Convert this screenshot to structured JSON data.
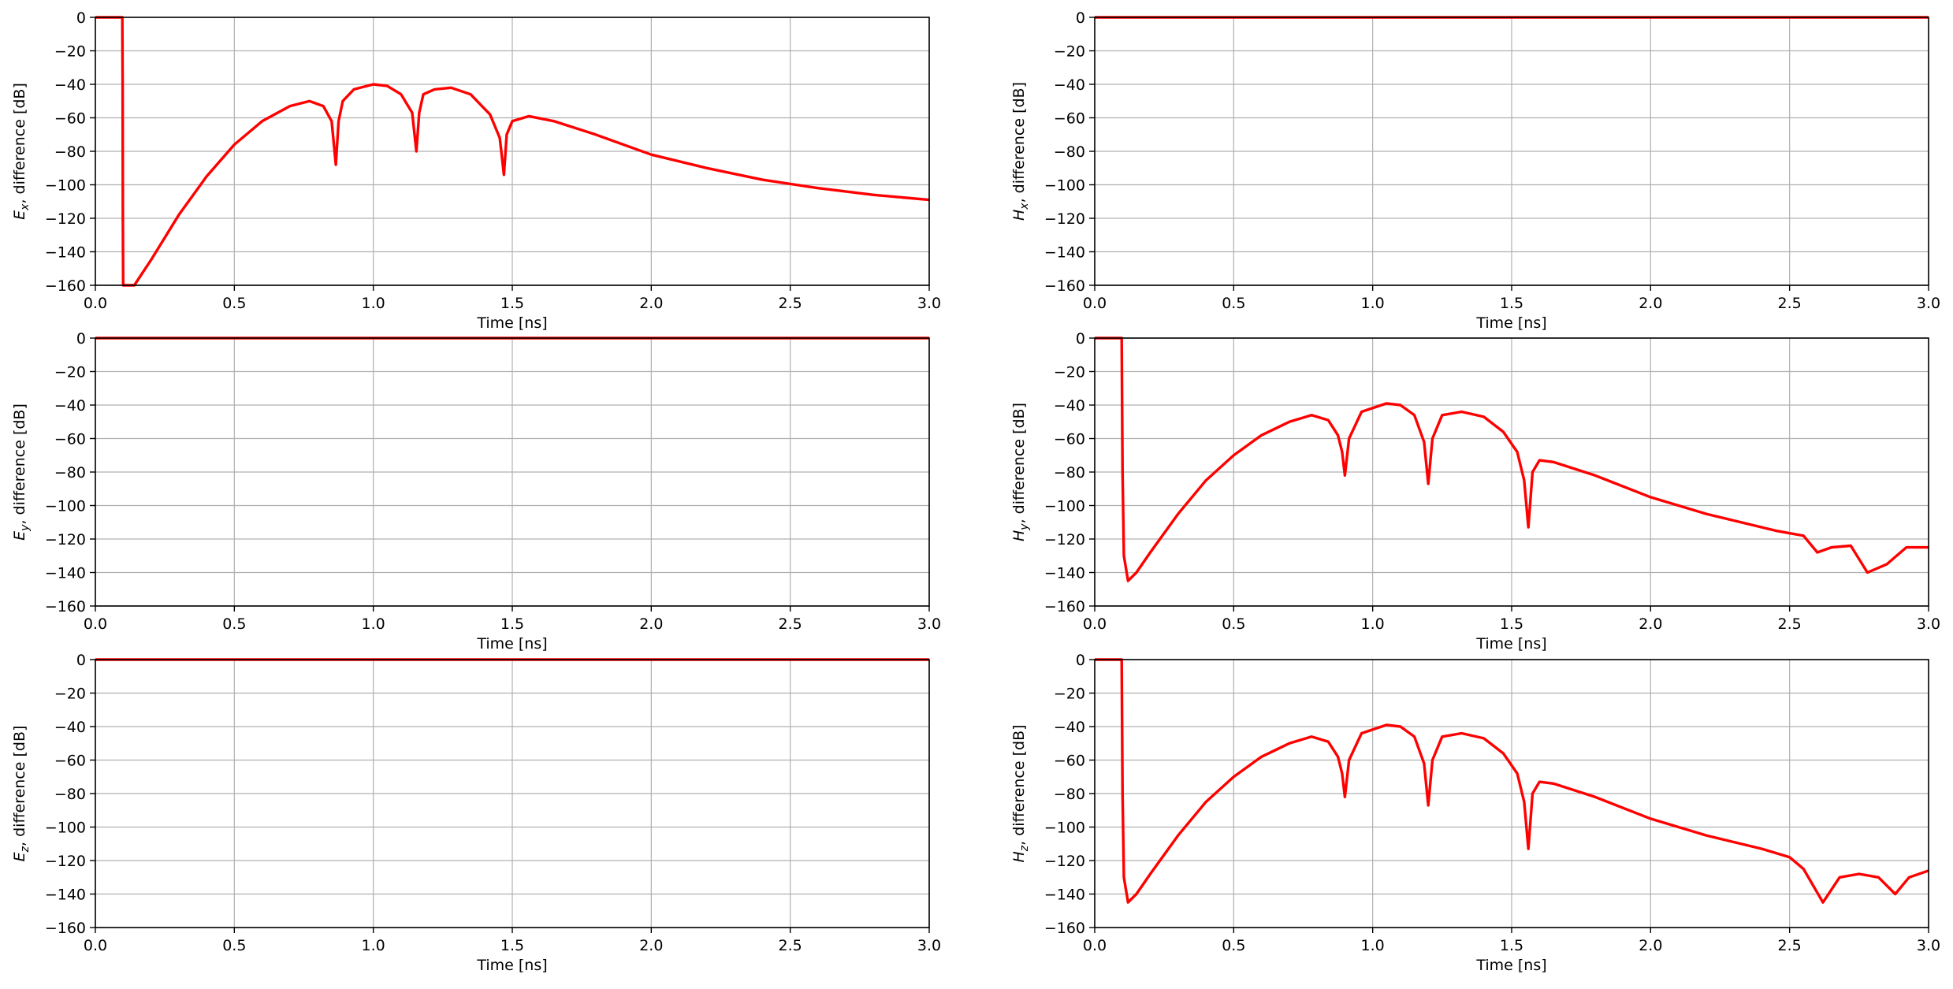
{
  "chart_data": [
    {
      "type": "line",
      "ylabel_symbol": "E",
      "ylabel_sub": "x",
      "ylabel_rest": ", difference [dB]",
      "xlabel": "Time [ns]",
      "xlim": [
        0,
        3
      ],
      "ylim": [
        -160,
        0
      ],
      "xticks": [
        "0.0",
        "0.5",
        "1.0",
        "1.5",
        "2.0",
        "2.5",
        "3.0"
      ],
      "yticks": [
        "0",
        "-20",
        "-40",
        "-60",
        "-80",
        "-100",
        "-120",
        "-140",
        "-160"
      ],
      "grid": true,
      "color": "#ff0000",
      "series": [
        {
          "x": [
            0.0,
            0.095,
            0.097,
            0.098,
            0.099,
            0.1,
            0.1,
            0.14,
            0.2,
            0.3,
            0.4,
            0.5,
            0.6,
            0.7,
            0.77,
            0.82,
            0.85,
            0.865,
            0.875,
            0.89,
            0.93,
            1.0,
            1.05,
            1.1,
            1.14,
            1.155,
            1.165,
            1.18,
            1.22,
            1.28,
            1.35,
            1.42,
            1.455,
            1.47,
            1.48,
            1.5,
            1.56,
            1.65,
            1.8,
            2.0,
            2.2,
            2.4,
            2.6,
            2.8,
            3.0
          ],
          "y": [
            0,
            0,
            0,
            -40,
            -120,
            -160,
            -160,
            -160,
            -145,
            -118,
            -95,
            -76,
            -62,
            -53,
            -50,
            -53,
            -62,
            -88,
            -62,
            -50,
            -43,
            -40,
            -41,
            -46,
            -57,
            -80,
            -57,
            -46,
            -43,
            -42,
            -46,
            -58,
            -72,
            -94,
            -70,
            -62,
            -59,
            -62,
            -70,
            -82,
            -90,
            -97,
            -102,
            -106,
            -109
          ]
        }
      ]
    },
    {
      "type": "line",
      "ylabel_symbol": "H",
      "ylabel_sub": "x",
      "ylabel_rest": ", difference [dB]",
      "xlabel": "Time [ns]",
      "xlim": [
        0,
        3
      ],
      "ylim": [
        -160,
        0
      ],
      "xticks": [
        "0.0",
        "0.5",
        "1.0",
        "1.5",
        "2.0",
        "2.5",
        "3.0"
      ],
      "yticks": [
        "0",
        "-20",
        "-40",
        "-60",
        "-80",
        "-100",
        "-120",
        "-140",
        "-160"
      ],
      "grid": true,
      "color": "#ff0000",
      "series": [
        {
          "x": [
            0.0,
            3.0
          ],
          "y": [
            0,
            0
          ]
        }
      ]
    },
    {
      "type": "line",
      "ylabel_symbol": "E",
      "ylabel_sub": "y",
      "ylabel_rest": ", difference [dB]",
      "xlabel": "Time [ns]",
      "xlim": [
        0,
        3
      ],
      "ylim": [
        -160,
        0
      ],
      "xticks": [
        "0.0",
        "0.5",
        "1.0",
        "1.5",
        "2.0",
        "2.5",
        "3.0"
      ],
      "yticks": [
        "0",
        "-20",
        "-40",
        "-60",
        "-80",
        "-100",
        "-120",
        "-140",
        "-160"
      ],
      "grid": true,
      "color": "#ff0000",
      "series": [
        {
          "x": [
            0.0,
            3.0
          ],
          "y": [
            0,
            0
          ]
        }
      ]
    },
    {
      "type": "line",
      "ylabel_symbol": "H",
      "ylabel_sub": "y",
      "ylabel_rest": ", difference [dB]",
      "xlabel": "Time [ns]",
      "xlim": [
        0,
        3
      ],
      "ylim": [
        -160,
        0
      ],
      "xticks": [
        "0.0",
        "0.5",
        "1.0",
        "1.5",
        "2.0",
        "2.5",
        "3.0"
      ],
      "yticks": [
        "0",
        "-20",
        "-40",
        "-60",
        "-80",
        "-100",
        "-120",
        "-140",
        "-160"
      ],
      "grid": true,
      "color": "#ff0000",
      "series": [
        {
          "x": [
            0.0,
            0.095,
            0.097,
            0.1,
            0.105,
            0.12,
            0.15,
            0.2,
            0.3,
            0.4,
            0.5,
            0.6,
            0.7,
            0.78,
            0.84,
            0.875,
            0.89,
            0.9,
            0.915,
            0.96,
            1.05,
            1.1,
            1.15,
            1.185,
            1.2,
            1.215,
            1.25,
            1.32,
            1.4,
            1.47,
            1.52,
            1.545,
            1.56,
            1.575,
            1.6,
            1.65,
            1.8,
            2.0,
            2.2,
            2.4,
            2.45,
            2.55,
            2.6,
            2.65,
            2.72,
            2.78,
            2.85,
            2.92,
            3.0
          ],
          "y": [
            0,
            0,
            0,
            -80,
            -130,
            -145,
            -140,
            -128,
            -105,
            -85,
            -70,
            -58,
            -50,
            -46,
            -49,
            -58,
            -68,
            -82,
            -60,
            -44,
            -39,
            -40,
            -46,
            -62,
            -87,
            -60,
            -46,
            -44,
            -47,
            -56,
            -68,
            -85,
            -113,
            -80,
            -73,
            -74,
            -82,
            -95,
            -105,
            -113,
            -115,
            -118,
            -128,
            -125,
            -124,
            -140,
            -135,
            -125,
            -125
          ]
        }
      ]
    },
    {
      "type": "line",
      "ylabel_symbol": "E",
      "ylabel_sub": "z",
      "ylabel_rest": ", difference [dB]",
      "xlabel": "Time [ns]",
      "xlim": [
        0,
        3
      ],
      "ylim": [
        -160,
        0
      ],
      "xticks": [
        "0.0",
        "0.5",
        "1.0",
        "1.5",
        "2.0",
        "2.5",
        "3.0"
      ],
      "yticks": [
        "0",
        "-20",
        "-40",
        "-60",
        "-80",
        "-100",
        "-120",
        "-140",
        "-160"
      ],
      "grid": true,
      "color": "#ff0000",
      "series": [
        {
          "x": [
            0.0,
            3.0
          ],
          "y": [
            0,
            0
          ]
        }
      ]
    },
    {
      "type": "line",
      "ylabel_symbol": "H",
      "ylabel_sub": "z",
      "ylabel_rest": ", difference [dB]",
      "xlabel": "Time [ns]",
      "xlim": [
        0,
        3
      ],
      "ylim": [
        -160,
        0
      ],
      "xticks": [
        "0.0",
        "0.5",
        "1.0",
        "1.5",
        "2.0",
        "2.5",
        "3.0"
      ],
      "yticks": [
        "0",
        "-20",
        "-40",
        "-60",
        "-80",
        "-100",
        "-120",
        "-140",
        "-160"
      ],
      "grid": true,
      "color": "#ff0000",
      "series": [
        {
          "x": [
            0.0,
            0.095,
            0.097,
            0.1,
            0.105,
            0.12,
            0.15,
            0.2,
            0.3,
            0.4,
            0.5,
            0.6,
            0.7,
            0.78,
            0.84,
            0.875,
            0.89,
            0.9,
            0.915,
            0.96,
            1.05,
            1.1,
            1.15,
            1.185,
            1.2,
            1.215,
            1.25,
            1.32,
            1.4,
            1.47,
            1.52,
            1.545,
            1.56,
            1.575,
            1.6,
            1.65,
            1.8,
            2.0,
            2.2,
            2.4,
            2.5,
            2.55,
            2.62,
            2.68,
            2.75,
            2.82,
            2.88,
            2.93,
            3.0
          ],
          "y": [
            0,
            0,
            0,
            -80,
            -130,
            -145,
            -140,
            -128,
            -105,
            -85,
            -70,
            -58,
            -50,
            -46,
            -49,
            -58,
            -68,
            -82,
            -60,
            -44,
            -39,
            -40,
            -46,
            -62,
            -87,
            -60,
            -46,
            -44,
            -47,
            -56,
            -68,
            -85,
            -113,
            -80,
            -73,
            -74,
            -82,
            -95,
            -105,
            -113,
            -118,
            -125,
            -145,
            -130,
            -128,
            -130,
            -140,
            -130,
            -126
          ]
        }
      ]
    }
  ]
}
